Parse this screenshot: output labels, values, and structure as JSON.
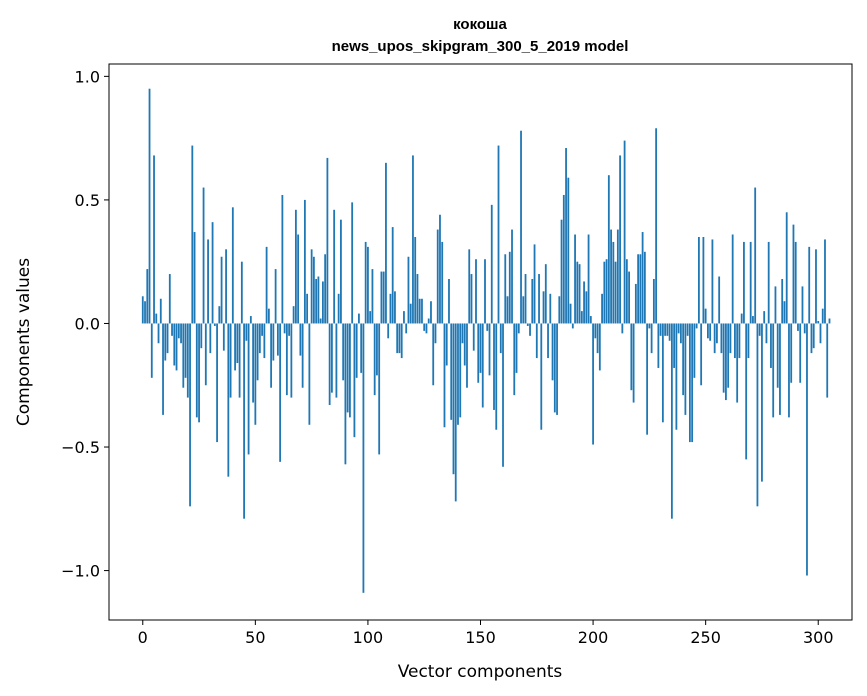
{
  "chart_data": {
    "type": "bar",
    "title": "кокоша",
    "subtitle": "news_upos_skipgram_300_5_2019 model",
    "xlabel": "Vector components",
    "ylabel": "Components values",
    "xlim": [
      -15,
      315
    ],
    "ylim": [
      -1.2,
      1.05
    ],
    "xticks": [
      0,
      50,
      100,
      150,
      200,
      250,
      300
    ],
    "yticks": [
      -1.0,
      -0.5,
      0.0,
      0.5,
      1.0
    ],
    "ytick_labels": [
      "−1.0",
      "−0.5",
      "0.0",
      "0.5",
      "1.0"
    ],
    "bar_color": "#1f77b4",
    "values": [
      0.11,
      0.09,
      0.22,
      0.95,
      -0.22,
      0.68,
      0.04,
      -0.08,
      0.1,
      -0.37,
      -0.15,
      -0.12,
      0.2,
      -0.05,
      -0.17,
      -0.19,
      -0.06,
      -0.08,
      -0.26,
      -0.22,
      -0.3,
      -0.74,
      0.72,
      0.37,
      -0.38,
      -0.4,
      -0.1,
      0.55,
      -0.25,
      0.34,
      -0.12,
      0.41,
      -0.01,
      -0.48,
      0.07,
      0.27,
      -0.11,
      0.3,
      -0.62,
      -0.3,
      0.47,
      -0.19,
      -0.16,
      -0.3,
      0.25,
      -0.79,
      -0.07,
      -0.53,
      0.03,
      -0.32,
      -0.41,
      -0.23,
      -0.12,
      -0.05,
      -0.14,
      0.31,
      0.06,
      -0.26,
      -0.15,
      0.22,
      -0.13,
      -0.56,
      0.52,
      -0.04,
      -0.29,
      -0.05,
      -0.3,
      0.07,
      0.46,
      0.36,
      -0.13,
      -0.26,
      0.5,
      0.12,
      -0.41,
      0.3,
      0.27,
      0.18,
      0.19,
      0.02,
      0.17,
      0.28,
      0.67,
      -0.33,
      -0.28,
      0.46,
      -0.3,
      0.12,
      0.42,
      -0.23,
      -0.57,
      -0.36,
      -0.38,
      0.49,
      -0.46,
      -0.22,
      0.04,
      -0.2,
      -1.09,
      0.33,
      0.31,
      0.05,
      0.22,
      -0.29,
      -0.21,
      -0.53,
      0.21,
      0.21,
      0.65,
      -0.06,
      0.12,
      0.39,
      0.13,
      -0.12,
      -0.12,
      -0.14,
      0.05,
      -0.04,
      0.27,
      0.08,
      0.68,
      0.35,
      0.2,
      0.1,
      0.1,
      -0.03,
      -0.04,
      0.02,
      0.09,
      -0.25,
      -0.08,
      0.38,
      0.44,
      0.33,
      -0.42,
      -0.17,
      0.18,
      -0.39,
      -0.61,
      -0.72,
      -0.41,
      -0.38,
      -0.08,
      -0.17,
      -0.26,
      0.3,
      0.2,
      -0.11,
      0.26,
      -0.24,
      -0.2,
      -0.34,
      0.26,
      -0.03,
      -0.21,
      0.48,
      -0.35,
      -0.43,
      0.72,
      -0.12,
      -0.58,
      0.28,
      0.11,
      0.29,
      0.38,
      -0.29,
      -0.2,
      -0.04,
      0.78,
      0.11,
      0.2,
      -0.01,
      -0.05,
      0.18,
      0.32,
      -0.14,
      0.2,
      -0.43,
      0.13,
      0.24,
      -0.14,
      0.12,
      -0.23,
      -0.36,
      -0.37,
      0.11,
      0.42,
      0.52,
      0.71,
      0.59,
      0.08,
      -0.02,
      0.36,
      0.25,
      0.24,
      0.05,
      0.17,
      0.13,
      0.36,
      0.03,
      -0.49,
      -0.06,
      -0.12,
      -0.19,
      0.12,
      0.25,
      0.26,
      0.6,
      0.38,
      0.33,
      0.25,
      0.38,
      0.68,
      -0.04,
      0.74,
      0.26,
      0.21,
      -0.27,
      -0.32,
      0.16,
      0.28,
      0.28,
      0.37,
      0.29,
      -0.45,
      -0.02,
      -0.12,
      0.18,
      0.79,
      -0.18,
      -0.05,
      -0.4,
      -0.05,
      -0.05,
      -0.07,
      -0.79,
      -0.18,
      -0.43,
      -0.04,
      -0.08,
      -0.29,
      -0.37,
      -0.05,
      -0.48,
      -0.48,
      -0.22,
      -0.02,
      0.35,
      -0.25,
      0.35,
      0.06,
      -0.06,
      -0.07,
      0.34,
      -0.12,
      -0.08,
      0.19,
      -0.12,
      -0.28,
      -0.31,
      -0.26,
      -0.12,
      0.36,
      -0.14,
      -0.32,
      -0.14,
      0.04,
      0.33,
      -0.55,
      -0.14,
      0.33,
      0.03,
      0.55,
      -0.74,
      -0.05,
      -0.64,
      0.05,
      -0.08,
      0.33,
      -0.18,
      -0.38,
      0.15,
      -0.26,
      -0.37,
      0.18,
      0.09,
      0.45,
      -0.38,
      -0.24,
      0.4,
      0.33,
      -0.03,
      -0.24,
      0.15,
      -0.04,
      -1.02,
      0.31,
      -0.12,
      -0.1,
      0.3,
      0.01,
      -0.08,
      0.06,
      0.34,
      -0.3,
      0.02
    ]
  }
}
